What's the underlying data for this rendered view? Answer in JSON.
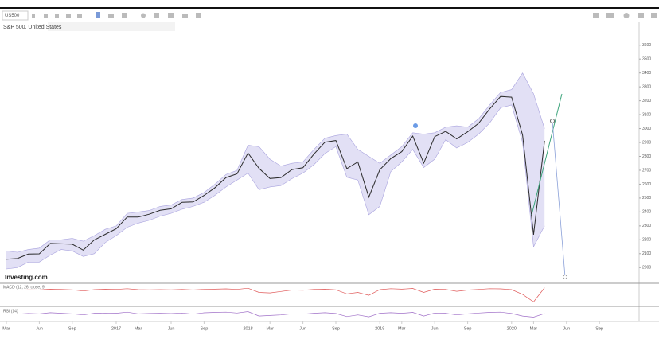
{
  "chart_data": {
    "type": "line",
    "symbol": "US500",
    "title": "S&P 500, United States",
    "source": "Investing.com",
    "categories": [
      "Mar",
      null,
      null,
      "Jun",
      null,
      null,
      "Sep",
      null,
      null,
      null,
      "2017",
      null,
      "Mar",
      null,
      null,
      "Jun",
      null,
      null,
      "Sep",
      null,
      null,
      null,
      "2018",
      null,
      "Mar",
      null,
      null,
      "Jun",
      null,
      null,
      "Sep",
      null,
      null,
      null,
      "2019",
      null,
      "Mar",
      null,
      null,
      "Jun",
      null,
      null,
      "Sep",
      null,
      null,
      null,
      "2020",
      null,
      "Mar",
      null,
      null,
      "Jun",
      null,
      null,
      "Sep",
      null,
      null,
      null
    ],
    "values": [
      2060,
      2065,
      2097,
      2099,
      2174,
      2171,
      2168,
      2126,
      2199,
      2239,
      2279,
      2364,
      2363,
      2384,
      2412,
      2423,
      2470,
      2472,
      2519,
      2575,
      2648,
      2674,
      2824,
      2714,
      2641,
      2648,
      2705,
      2718,
      2816,
      2902,
      2914,
      2712,
      2760,
      2507,
      2704,
      2784,
      2834,
      2946,
      2752,
      2942,
      2980,
      2926,
      2977,
      3038,
      3141,
      3231,
      3226,
      2954,
      2237,
      2912,
      null,
      null,
      null,
      null,
      null,
      null,
      null,
      null
    ],
    "color": "#2b2b2b",
    "band": {
      "color": "#cfcbef",
      "upper": [
        2120,
        2110,
        2130,
        2140,
        2200,
        2200,
        2210,
        2190,
        2230,
        2275,
        2300,
        2390,
        2400,
        2410,
        2440,
        2450,
        2490,
        2500,
        2540,
        2600,
        2670,
        2700,
        2880,
        2870,
        2780,
        2730,
        2750,
        2760,
        2850,
        2930,
        2950,
        2960,
        2850,
        2800,
        2750,
        2810,
        2870,
        2970,
        2960,
        2970,
        3010,
        3020,
        3010,
        3070,
        3170,
        3260,
        3280,
        3400,
        3250,
        3000,
        null,
        null,
        null,
        null,
        null,
        null,
        null,
        null
      ],
      "lower": [
        1990,
        2000,
        2040,
        2040,
        2090,
        2130,
        2120,
        2080,
        2100,
        2180,
        2230,
        2290,
        2320,
        2340,
        2370,
        2390,
        2420,
        2440,
        2470,
        2520,
        2580,
        2630,
        2680,
        2560,
        2580,
        2590,
        2640,
        2680,
        2740,
        2820,
        2870,
        2650,
        2630,
        2380,
        2440,
        2690,
        2760,
        2850,
        2720,
        2780,
        2920,
        2860,
        2900,
        2960,
        3040,
        3150,
        3170,
        2900,
        2150,
        2300,
        null,
        null,
        null,
        null,
        null,
        null,
        null,
        null
      ]
    },
    "ylim": [
      1950,
      3650
    ],
    "yticks": [
      2000,
      2100,
      2200,
      2300,
      2400,
      2500,
      2600,
      2700,
      2800,
      2900,
      3000,
      3100,
      3200,
      3300,
      3400,
      3500,
      3600
    ],
    "indicators": [
      {
        "title": "MACD (12, 26, close, 9)",
        "color": "#e05a5a",
        "ylim": [
          -150,
          60
        ],
        "values": [
          5,
          4,
          8,
          6,
          15,
          12,
          8,
          -5,
          10,
          15,
          12,
          20,
          10,
          8,
          10,
          8,
          12,
          6,
          12,
          15,
          18,
          12,
          25,
          -20,
          -25,
          -10,
          5,
          3,
          12,
          15,
          8,
          -35,
          -20,
          -50,
          10,
          20,
          15,
          22,
          -20,
          15,
          12,
          -8,
          5,
          12,
          20,
          18,
          10,
          -40,
          -120,
          30,
          null,
          null,
          null,
          null,
          null,
          null,
          null,
          null
        ]
      },
      {
        "title": "RSI (14)",
        "color": "#a070c8",
        "ylim": [
          0,
          100
        ],
        "values": [
          55,
          52,
          58,
          54,
          65,
          60,
          55,
          45,
          60,
          62,
          60,
          70,
          55,
          58,
          60,
          57,
          62,
          52,
          64,
          68,
          70,
          62,
          75,
          35,
          40,
          45,
          55,
          52,
          60,
          65,
          58,
          30,
          45,
          28,
          60,
          65,
          60,
          68,
          35,
          62,
          60,
          45,
          55,
          62,
          68,
          70,
          58,
          35,
          25,
          58,
          null,
          null,
          null,
          null,
          null,
          null,
          null,
          null
        ]
      }
    ]
  }
}
